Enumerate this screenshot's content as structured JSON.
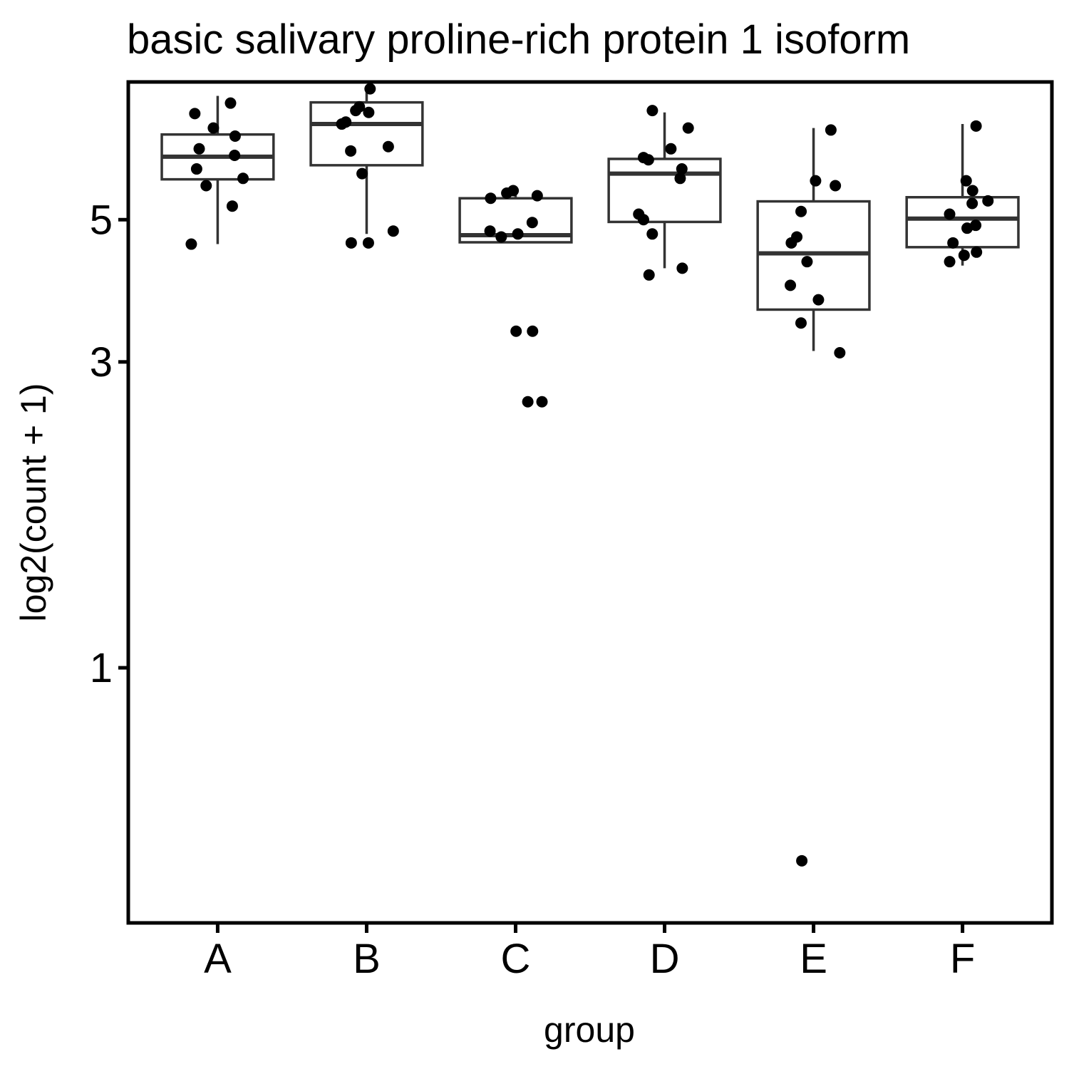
{
  "chart_data": {
    "type": "box",
    "title": "basic salivary proline-rich protein 1 isoform",
    "xlabel": "group",
    "ylabel": "log2(count + 1)",
    "y_scale": "log",
    "ylim": [
      0.4,
      8.2
    ],
    "yticks": [
      1,
      3,
      5
    ],
    "grid": false,
    "legend": "none",
    "categories": [
      "A",
      "B",
      "C",
      "D",
      "E",
      "F"
    ],
    "boxes": [
      {
        "group": "A",
        "min": 4.58,
        "q1": 5.78,
        "median": 6.27,
        "q3": 6.79,
        "max": 7.8
      },
      {
        "group": "B",
        "min": 4.75,
        "q1": 6.08,
        "median": 7.05,
        "q3": 7.62,
        "max": 8.0
      },
      {
        "group": "C",
        "min": 4.61,
        "q1": 4.61,
        "median": 4.73,
        "q3": 5.4,
        "max": 5.5
      },
      {
        "group": "D",
        "min": 4.2,
        "q1": 4.96,
        "median": 5.9,
        "q3": 6.22,
        "max": 7.35
      },
      {
        "group": "E",
        "min": 3.12,
        "q1": 3.62,
        "median": 4.43,
        "q3": 5.34,
        "max": 6.95
      },
      {
        "group": "F",
        "min": 4.24,
        "q1": 4.53,
        "median": 5.02,
        "q3": 5.42,
        "max": 7.05
      }
    ],
    "points": [
      {
        "group": "A",
        "values": [
          7.6,
          7.32,
          6.95,
          6.75,
          6.45,
          6.3,
          6.0,
          5.8,
          5.65,
          5.25,
          4.58
        ]
      },
      {
        "group": "B",
        "values": [
          8.0,
          7.5,
          7.4,
          7.35,
          7.1,
          7.05,
          6.5,
          6.4,
          5.9,
          4.8,
          4.6,
          4.6
        ]
      },
      {
        "group": "C",
        "values": [
          5.55,
          5.5,
          5.45,
          5.4,
          4.95,
          4.8,
          4.75,
          4.7,
          3.35,
          3.35,
          2.6,
          2.6
        ]
      },
      {
        "group": "D",
        "values": [
          7.4,
          6.95,
          6.45,
          6.25,
          6.2,
          6.0,
          5.8,
          5.1,
          5.0,
          4.75,
          4.2,
          4.1
        ]
      },
      {
        "group": "E",
        "values": [
          6.9,
          5.75,
          5.65,
          5.15,
          4.7,
          4.6,
          4.3,
          3.95,
          3.75,
          3.45,
          3.1,
          0.5
        ]
      },
      {
        "group": "F",
        "values": [
          7.0,
          5.75,
          5.55,
          5.35,
          5.3,
          5.1,
          4.9,
          4.85,
          4.6,
          4.45,
          4.4,
          4.3
        ]
      }
    ]
  }
}
